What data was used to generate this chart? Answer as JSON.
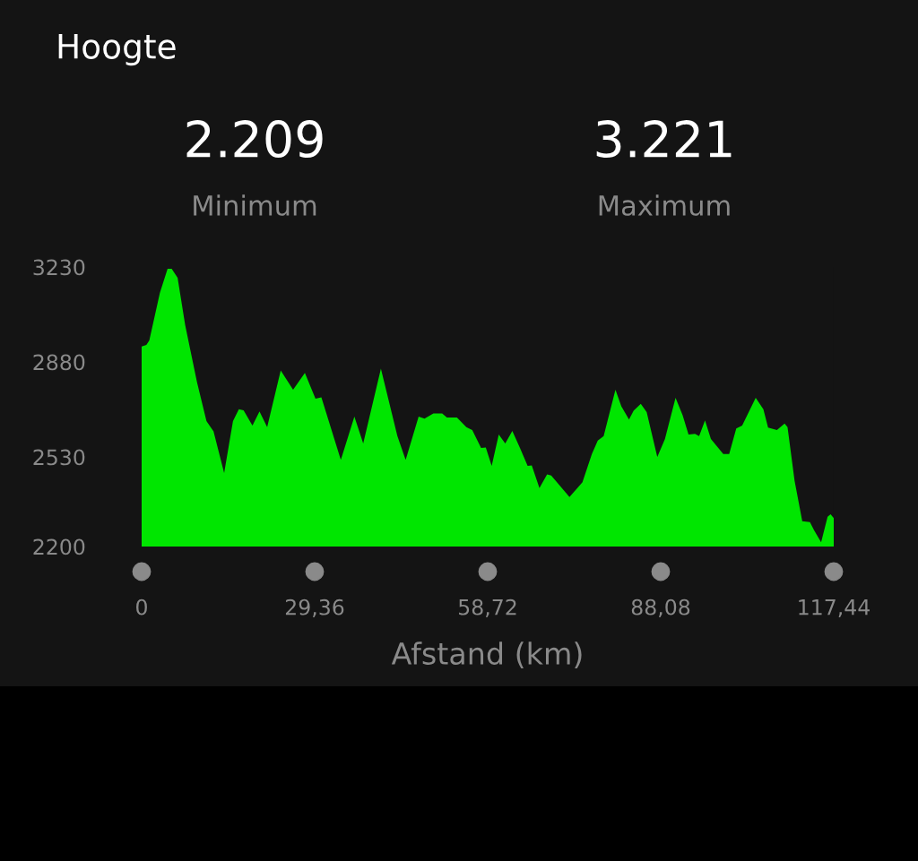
{
  "chart_data": {
    "type": "area",
    "title": "Hoogte",
    "xlabel": "Afstand (km)",
    "annotations": [
      "2.209",
      "Minimum",
      "3.221",
      "Maximum"
    ],
    "x": [
      0,
      0.8,
      1.3,
      3.1,
      4.4,
      5.1,
      6.1,
      7.4,
      9.4,
      11.0,
      12.2,
      14.0,
      15.5,
      16.5,
      17.3,
      18.8,
      20.0,
      21.3,
      23.6,
      25.7,
      27.7,
      29.5,
      30.5,
      33.8,
      36.1,
      37.6,
      40.6,
      43.4,
      44.8,
      47.0,
      48.0,
      49.5,
      51.0,
      51.8,
      53.5,
      55.1,
      56.1,
      57.6,
      58.4,
      59.4,
      60.6,
      61.7,
      62.9,
      64.2,
      65.5,
      66.2,
      67.5,
      68.8,
      69.5,
      72.6,
      73.3,
      74.8,
      76.4,
      77.4,
      78.4,
      80.4,
      81.4,
      82.7,
      83.5,
      84.7,
      85.7,
      87.5,
      88.8,
      90.6,
      91.8,
      92.8,
      93.9,
      94.6,
      95.6,
      96.6,
      98.7,
      99.7,
      100.9,
      101.9,
      104.2,
      105.5,
      106.3,
      107.8,
      109.1,
      109.6,
      110.8,
      112.1,
      113.4,
      114.1,
      115.3,
      116.4,
      116.9,
      117.44
    ],
    "series": [
      {
        "color": "#00e600",
        "values": [
          2937,
          2943,
          2959,
          3135,
          3223,
          3223,
          3190,
          3015,
          2805,
          2662,
          2624,
          2471,
          2662,
          2706,
          2702,
          2646,
          2698,
          2640,
          2849,
          2778,
          2840,
          2745,
          2750,
          2519,
          2679,
          2580,
          2855,
          2607,
          2519,
          2679,
          2671,
          2690,
          2690,
          2675,
          2675,
          2640,
          2629,
          2563,
          2565,
          2497,
          2613,
          2580,
          2626,
          2563,
          2497,
          2499,
          2415,
          2466,
          2462,
          2382,
          2400,
          2437,
          2541,
          2590,
          2607,
          2778,
          2717,
          2668,
          2701,
          2726,
          2695,
          2530,
          2596,
          2748,
          2684,
          2613,
          2615,
          2607,
          2665,
          2596,
          2541,
          2541,
          2635,
          2646,
          2748,
          2706,
          2638,
          2629,
          2653,
          2640,
          2442,
          2293,
          2290,
          2260,
          2216,
          2310,
          2319,
          2305
        ]
      }
    ],
    "xlim": [
      0,
      117.44
    ],
    "ylim": [
      2200,
      3230
    ],
    "xticks": [
      0,
      {
        "value": 29.36,
        "label": "29,36"
      },
      {
        "value": 58.72,
        "label": "58,72"
      },
      {
        "value": 88.08,
        "label": "88,08"
      },
      {
        "value": 117.44,
        "label": "117,44"
      }
    ],
    "yticks": [
      2200,
      2530,
      2880,
      3230
    ],
    "grid": false,
    "legend": false
  }
}
